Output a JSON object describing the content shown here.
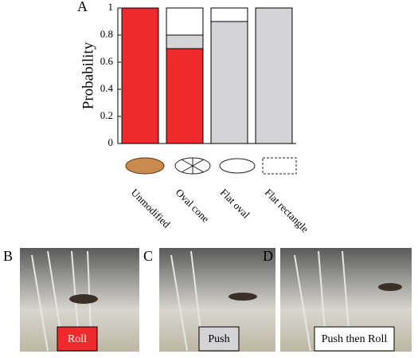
{
  "chart_data": {
    "type": "stacked_bar",
    "ylabel": "Probability",
    "categories": [
      "Unmodified",
      "Oval cone",
      "Flat oval",
      "Flat rectangle"
    ],
    "series": [
      {
        "name": "Roll",
        "color": "#ee2a2d",
        "values": [
          1,
          0.7,
          0,
          0
        ]
      },
      {
        "name": "Push",
        "color": "#d4d4d6",
        "values": [
          0,
          0.1,
          0.9,
          1
        ]
      },
      {
        "name": "Push then Roll",
        "color": "#ffffff",
        "values": [
          0,
          0.2,
          0.1,
          0
        ]
      }
    ],
    "ylim": [
      0,
      1
    ],
    "yticks": [
      0,
      0.2,
      0.4,
      0.6,
      0.8,
      1
    ]
  },
  "panels": [
    "A",
    "B",
    "C",
    "D"
  ]
}
